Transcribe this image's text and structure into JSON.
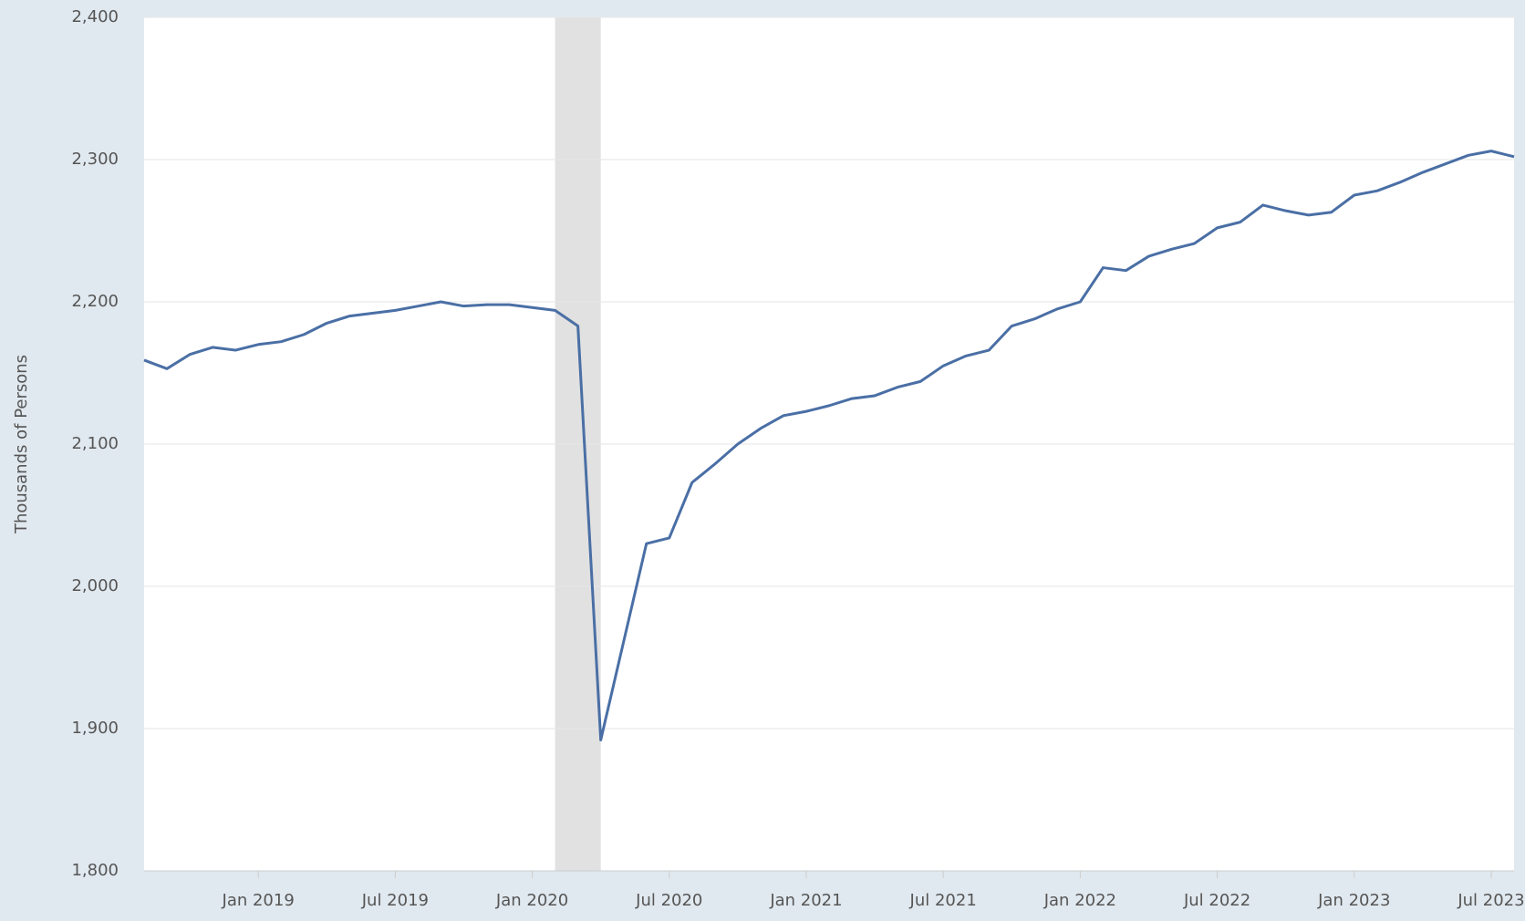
{
  "chart_data": {
    "type": "line",
    "y_label": "Thousands of Persons",
    "x": [
      "2018-08",
      "2018-09",
      "2018-10",
      "2018-11",
      "2018-12",
      "2019-01",
      "2019-02",
      "2019-03",
      "2019-04",
      "2019-05",
      "2019-06",
      "2019-07",
      "2019-08",
      "2019-09",
      "2019-10",
      "2019-11",
      "2019-12",
      "2020-01",
      "2020-02",
      "2020-03",
      "2020-04",
      "2020-05",
      "2020-06",
      "2020-07",
      "2020-08",
      "2020-09",
      "2020-10",
      "2020-11",
      "2020-12",
      "2021-01",
      "2021-02",
      "2021-03",
      "2021-04",
      "2021-05",
      "2021-06",
      "2021-07",
      "2021-08",
      "2021-09",
      "2021-10",
      "2021-11",
      "2021-12",
      "2022-01",
      "2022-02",
      "2022-03",
      "2022-04",
      "2022-05",
      "2022-06",
      "2022-07",
      "2022-08",
      "2022-09",
      "2022-10",
      "2022-11",
      "2022-12",
      "2023-01",
      "2023-02",
      "2023-03",
      "2023-04",
      "2023-05",
      "2023-06",
      "2023-07",
      "2023-08"
    ],
    "series": [
      {
        "color": "#4a6fa5",
        "values": [
          2159,
          2153,
          2163,
          2168,
          2166,
          2170,
          2172,
          2177,
          2185,
          2190,
          2192,
          2194,
          2197,
          2200,
          2197,
          2198,
          2198,
          2196,
          2194,
          2183,
          1892,
          1961,
          2030,
          2034,
          2073,
          2086,
          2100,
          2111,
          2120,
          2123,
          2127,
          2132,
          2134,
          2140,
          2144,
          2155,
          2162,
          2166,
          2183,
          2188,
          2195,
          2200,
          2224,
          2222,
          2232,
          2237,
          2241,
          2252,
          2256,
          2268,
          2264,
          2261,
          2263,
          2275,
          2278,
          2284,
          2291,
          2297,
          2303,
          2306,
          2302
        ]
      }
    ],
    "recession": [
      "2020-02",
      "2020-04"
    ],
    "recession_color": "#e1e1e1",
    "xlim": [
      "2018-08",
      "2023-08"
    ],
    "xticks": [
      {
        "value": "2019-01",
        "label": "Jan 2019"
      },
      {
        "value": "2019-07",
        "label": "Jul 2019"
      },
      {
        "value": "2020-01",
        "label": "Jan 2020"
      },
      {
        "value": "2020-07",
        "label": "Jul 2020"
      },
      {
        "value": "2021-01",
        "label": "Jan 2021"
      },
      {
        "value": "2021-07",
        "label": "Jul 2021"
      },
      {
        "value": "2022-01",
        "label": "Jan 2022"
      },
      {
        "value": "2022-07",
        "label": "Jul 2022"
      },
      {
        "value": "2023-01",
        "label": "Jan 2023"
      },
      {
        "value": "2023-07",
        "label": "Jul 2023"
      }
    ],
    "ylim": [
      1800,
      2400
    ],
    "yticks": [
      {
        "value": 1800,
        "label": "1,800"
      },
      {
        "value": 1900,
        "label": "1,900"
      },
      {
        "value": 2000,
        "label": "2,000"
      },
      {
        "value": 2100,
        "label": "2,100"
      },
      {
        "value": 2200,
        "label": "2,200"
      },
      {
        "value": 2300,
        "label": "2,300"
      },
      {
        "value": 2400,
        "label": "2,400"
      }
    ],
    "grid": true
  }
}
